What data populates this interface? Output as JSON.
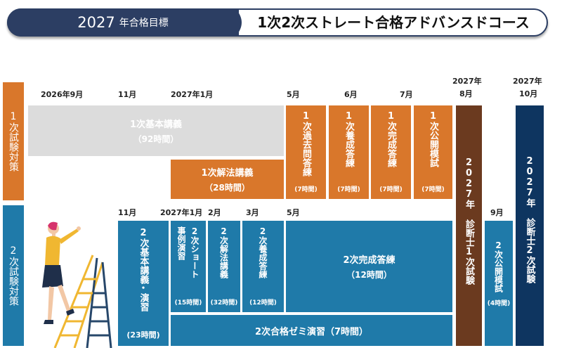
{
  "header": {
    "year": "2027",
    "target_suffix": "年合格目標",
    "course_title": "1次2次ストレート合格アドバンスドコース"
  },
  "row_labels": {
    "first": "1次試験対策",
    "second": "2次試験対策"
  },
  "timeline_top": {
    "sep2026": "2026年9月",
    "nov": "11月",
    "jan2027": "2027年1月",
    "may": "5月",
    "jun": "6月",
    "jul": "7月",
    "aug_year": "2027年",
    "aug_month": "8月",
    "oct_year": "2027年",
    "oct_month": "10月"
  },
  "timeline_second": {
    "nov": "11月",
    "jan2027": "2027年1月",
    "feb": "2月",
    "mar": "3月",
    "may": "5月",
    "sep": "9月"
  },
  "first_blocks": {
    "basic": {
      "title": "1次基本講義",
      "hours": "（92時間）"
    },
    "solution": {
      "title": "1次解法講義",
      "hours": "（28時間）"
    },
    "past": {
      "title": "1次過去問答練",
      "hours": "(7時間)"
    },
    "cultivation": {
      "title": "1次養成答練",
      "hours": "(7時間)"
    },
    "completion": {
      "title": "1次完成答練",
      "hours": "(7時間)"
    },
    "mock": {
      "title": "1次公開模試",
      "hours": "(7時間)"
    }
  },
  "exam_1": "2027年 診断士1次試験",
  "exam_2": "2027年 診断士2次試験",
  "second_blocks": {
    "basic": {
      "title_a": "2次基本講義",
      "title_b": "演習",
      "hours": "(23時間)"
    },
    "short": {
      "title_a": "2次ショート",
      "title_b": "事例演習",
      "hours": "(15時間)"
    },
    "solution": {
      "title": "2次解法講義",
      "hours": "(32時間)"
    },
    "cultivation": {
      "title": "2次養成答練",
      "hours": "(12時間)"
    },
    "completion": {
      "title": "2次完成答練",
      "hours": "（12時間）"
    },
    "seminar": {
      "title": "2次合格ゼミ演習（7時間）"
    },
    "mock": {
      "title": "2次公開模試",
      "hours": "(4時間)"
    }
  },
  "colors": {
    "navy": "#2c3e63",
    "orange": "#d9772b",
    "gray": "#dcdcdc",
    "blue": "#1f7aa9",
    "brown": "#6b3a1f",
    "darkblue": "#0e3560"
  }
}
